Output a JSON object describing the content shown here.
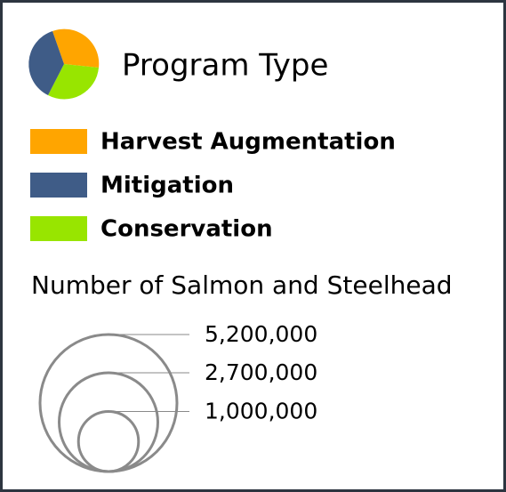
{
  "title": "Program Type",
  "legend": [
    {
      "name": "Harvest Augmentation",
      "color": "#ffa500"
    },
    {
      "name": "Mitigation",
      "color": "#3f5c87"
    },
    {
      "name": "Conservation",
      "color": "#98e500"
    }
  ],
  "size_legend": {
    "title": "Number of Salmon and Steelhead",
    "values": [
      5200000,
      2700000,
      1000000
    ],
    "value_labels": [
      "5,200,000",
      "2,700,000",
      "1,000,000"
    ]
  }
}
